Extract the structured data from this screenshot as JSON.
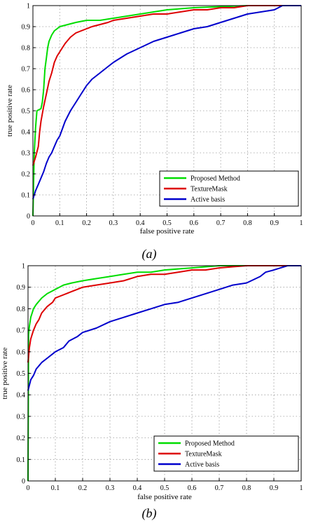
{
  "chart_data": [
    {
      "type": "line",
      "caption": "(a)",
      "xlabel": "false positive rate",
      "ylabel": "true positive rate",
      "xlim": [
        0,
        1
      ],
      "ylim": [
        0,
        1
      ],
      "xticks": [
        "0",
        "0.1",
        "0.2",
        "0.3",
        "0.4",
        "0.5",
        "0.6",
        "0.7",
        "0.8",
        "0.9",
        "1"
      ],
      "yticks": [
        "0",
        "0.1",
        "0.2",
        "0.3",
        "0.4",
        "0.5",
        "0.6",
        "0.7",
        "0.8",
        "0.9",
        "1"
      ],
      "grid": true,
      "legend": "bottom-right",
      "series": [
        {
          "name": "Proposed Method",
          "color": "#00dd00",
          "points": [
            [
              0,
              0
            ],
            [
              0.005,
              0.3
            ],
            [
              0.01,
              0.42
            ],
            [
              0.015,
              0.5
            ],
            [
              0.03,
              0.51
            ],
            [
              0.035,
              0.54
            ],
            [
              0.04,
              0.6
            ],
            [
              0.045,
              0.7
            ],
            [
              0.05,
              0.75
            ],
            [
              0.055,
              0.8
            ],
            [
              0.06,
              0.83
            ],
            [
              0.07,
              0.86
            ],
            [
              0.08,
              0.88
            ],
            [
              0.09,
              0.89
            ],
            [
              0.1,
              0.9
            ],
            [
              0.13,
              0.91
            ],
            [
              0.16,
              0.92
            ],
            [
              0.2,
              0.93
            ],
            [
              0.25,
              0.93
            ],
            [
              0.3,
              0.94
            ],
            [
              0.35,
              0.95
            ],
            [
              0.4,
              0.96
            ],
            [
              0.45,
              0.97
            ],
            [
              0.5,
              0.98
            ],
            [
              0.6,
              0.99
            ],
            [
              0.7,
              0.995
            ],
            [
              0.8,
              1.0
            ],
            [
              1.0,
              1.0
            ]
          ]
        },
        {
          "name": "TextureMask",
          "color": "#dd0000",
          "points": [
            [
              0,
              0.24
            ],
            [
              0.01,
              0.28
            ],
            [
              0.02,
              0.33
            ],
            [
              0.025,
              0.4
            ],
            [
              0.03,
              0.45
            ],
            [
              0.04,
              0.52
            ],
            [
              0.05,
              0.58
            ],
            [
              0.06,
              0.64
            ],
            [
              0.07,
              0.68
            ],
            [
              0.08,
              0.73
            ],
            [
              0.09,
              0.76
            ],
            [
              0.1,
              0.78
            ],
            [
              0.12,
              0.82
            ],
            [
              0.14,
              0.85
            ],
            [
              0.16,
              0.87
            ],
            [
              0.18,
              0.88
            ],
            [
              0.2,
              0.89
            ],
            [
              0.22,
              0.9
            ],
            [
              0.25,
              0.91
            ],
            [
              0.28,
              0.92
            ],
            [
              0.3,
              0.93
            ],
            [
              0.35,
              0.94
            ],
            [
              0.4,
              0.95
            ],
            [
              0.45,
              0.96
            ],
            [
              0.5,
              0.96
            ],
            [
              0.55,
              0.97
            ],
            [
              0.6,
              0.98
            ],
            [
              0.65,
              0.98
            ],
            [
              0.7,
              0.99
            ],
            [
              0.75,
              0.99
            ],
            [
              0.8,
              1.0
            ],
            [
              1.0,
              1.0
            ]
          ]
        },
        {
          "name": "Active basis",
          "color": "#0000cc",
          "points": [
            [
              0,
              0.08
            ],
            [
              0.01,
              0.12
            ],
            [
              0.02,
              0.15
            ],
            [
              0.03,
              0.18
            ],
            [
              0.04,
              0.21
            ],
            [
              0.05,
              0.25
            ],
            [
              0.06,
              0.28
            ],
            [
              0.07,
              0.3
            ],
            [
              0.08,
              0.33
            ],
            [
              0.09,
              0.36
            ],
            [
              0.1,
              0.38
            ],
            [
              0.12,
              0.45
            ],
            [
              0.14,
              0.5
            ],
            [
              0.16,
              0.54
            ],
            [
              0.18,
              0.58
            ],
            [
              0.2,
              0.62
            ],
            [
              0.22,
              0.65
            ],
            [
              0.25,
              0.68
            ],
            [
              0.28,
              0.71
            ],
            [
              0.3,
              0.73
            ],
            [
              0.35,
              0.77
            ],
            [
              0.4,
              0.8
            ],
            [
              0.45,
              0.83
            ],
            [
              0.5,
              0.85
            ],
            [
              0.55,
              0.87
            ],
            [
              0.6,
              0.89
            ],
            [
              0.65,
              0.9
            ],
            [
              0.7,
              0.92
            ],
            [
              0.75,
              0.94
            ],
            [
              0.8,
              0.96
            ],
            [
              0.85,
              0.97
            ],
            [
              0.9,
              0.98
            ],
            [
              0.93,
              1.0
            ],
            [
              1.0,
              1.0
            ]
          ]
        }
      ]
    },
    {
      "type": "line",
      "caption": "(b)",
      "xlabel": "false positive rate",
      "ylabel": "true positive rate",
      "xlim": [
        0,
        1
      ],
      "ylim": [
        0,
        1
      ],
      "xticks": [
        "0",
        "0.1",
        "0.2",
        "0.3",
        "0.4",
        "0.5",
        "0.6",
        "0.7",
        "0.8",
        "0.9",
        "1"
      ],
      "yticks": [
        "0",
        "0.1",
        "0.2",
        "0.3",
        "0.4",
        "0.5",
        "0.6",
        "0.7",
        "0.8",
        "0.9",
        "1"
      ],
      "grid": true,
      "legend": "bottom-right",
      "series": [
        {
          "name": "Proposed Method",
          "color": "#00dd00",
          "points": [
            [
              0,
              0
            ],
            [
              0.002,
              0.68
            ],
            [
              0.005,
              0.72
            ],
            [
              0.01,
              0.76
            ],
            [
              0.02,
              0.8
            ],
            [
              0.03,
              0.82
            ],
            [
              0.05,
              0.85
            ],
            [
              0.07,
              0.87
            ],
            [
              0.1,
              0.89
            ],
            [
              0.13,
              0.91
            ],
            [
              0.16,
              0.92
            ],
            [
              0.2,
              0.93
            ],
            [
              0.25,
              0.94
            ],
            [
              0.3,
              0.95
            ],
            [
              0.35,
              0.96
            ],
            [
              0.4,
              0.97
            ],
            [
              0.45,
              0.97
            ],
            [
              0.5,
              0.98
            ],
            [
              0.6,
              0.99
            ],
            [
              0.7,
              1.0
            ],
            [
              1.0,
              1.0
            ]
          ]
        },
        {
          "name": "TextureMask",
          "color": "#dd0000",
          "points": [
            [
              0,
              0.55
            ],
            [
              0.005,
              0.62
            ],
            [
              0.01,
              0.66
            ],
            [
              0.02,
              0.7
            ],
            [
              0.03,
              0.73
            ],
            [
              0.04,
              0.75
            ],
            [
              0.05,
              0.78
            ],
            [
              0.07,
              0.81
            ],
            [
              0.09,
              0.83
            ],
            [
              0.1,
              0.85
            ],
            [
              0.12,
              0.86
            ],
            [
              0.14,
              0.87
            ],
            [
              0.16,
              0.88
            ],
            [
              0.18,
              0.89
            ],
            [
              0.2,
              0.9
            ],
            [
              0.25,
              0.91
            ],
            [
              0.3,
              0.92
            ],
            [
              0.35,
              0.93
            ],
            [
              0.4,
              0.95
            ],
            [
              0.45,
              0.96
            ],
            [
              0.5,
              0.96
            ],
            [
              0.55,
              0.97
            ],
            [
              0.6,
              0.98
            ],
            [
              0.65,
              0.98
            ],
            [
              0.7,
              0.99
            ],
            [
              0.75,
              0.995
            ],
            [
              0.8,
              1.0
            ],
            [
              1.0,
              1.0
            ]
          ]
        },
        {
          "name": "Active basis",
          "color": "#0000cc",
          "points": [
            [
              0,
              0.42
            ],
            [
              0.01,
              0.47
            ],
            [
              0.02,
              0.49
            ],
            [
              0.03,
              0.52
            ],
            [
              0.05,
              0.55
            ],
            [
              0.07,
              0.57
            ],
            [
              0.1,
              0.6
            ],
            [
              0.13,
              0.62
            ],
            [
              0.15,
              0.65
            ],
            [
              0.18,
              0.67
            ],
            [
              0.2,
              0.69
            ],
            [
              0.25,
              0.71
            ],
            [
              0.3,
              0.74
            ],
            [
              0.35,
              0.76
            ],
            [
              0.4,
              0.78
            ],
            [
              0.45,
              0.8
            ],
            [
              0.5,
              0.82
            ],
            [
              0.55,
              0.83
            ],
            [
              0.6,
              0.85
            ],
            [
              0.65,
              0.87
            ],
            [
              0.7,
              0.89
            ],
            [
              0.75,
              0.91
            ],
            [
              0.8,
              0.92
            ],
            [
              0.85,
              0.95
            ],
            [
              0.87,
              0.97
            ],
            [
              0.9,
              0.98
            ],
            [
              0.95,
              1.0
            ],
            [
              1.0,
              1.0
            ]
          ]
        }
      ]
    }
  ]
}
